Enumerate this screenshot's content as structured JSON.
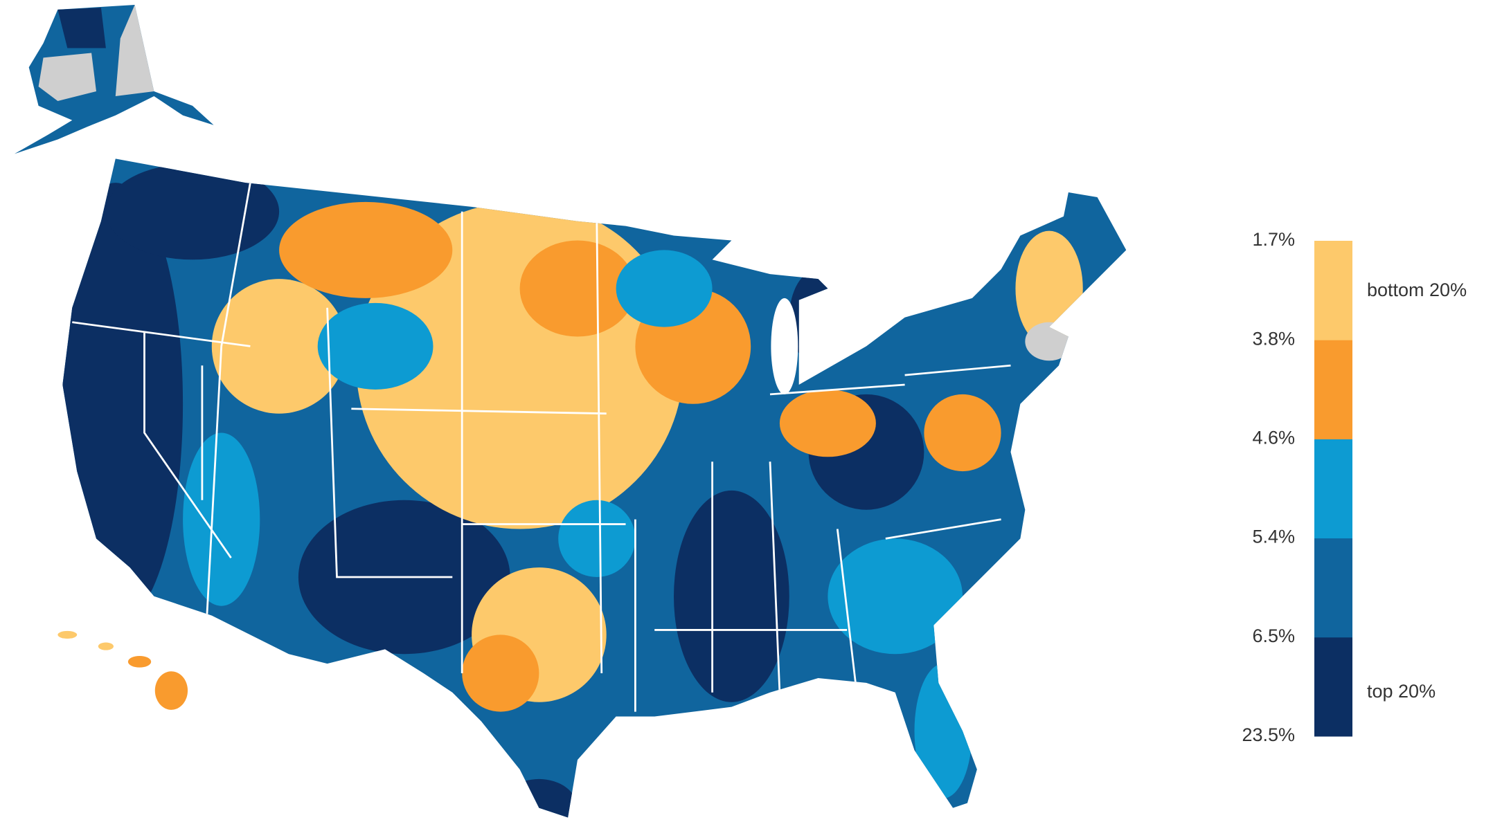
{
  "legend": {
    "breaks": [
      {
        "value": 1.7,
        "label": "1.7%"
      },
      {
        "value": 3.8,
        "label": "3.8%"
      },
      {
        "value": 4.6,
        "label": "4.6%"
      },
      {
        "value": 5.4,
        "label": "5.4%"
      },
      {
        "value": 6.5,
        "label": "6.5%"
      },
      {
        "value": 23.5,
        "label": "23.5%"
      }
    ],
    "colors": [
      "#fdc96b",
      "#f99b2e",
      "#0d9bd2",
      "#10659e",
      "#0c2f63"
    ],
    "bottom_label": "bottom 20%",
    "top_label": "top 20%"
  }
}
